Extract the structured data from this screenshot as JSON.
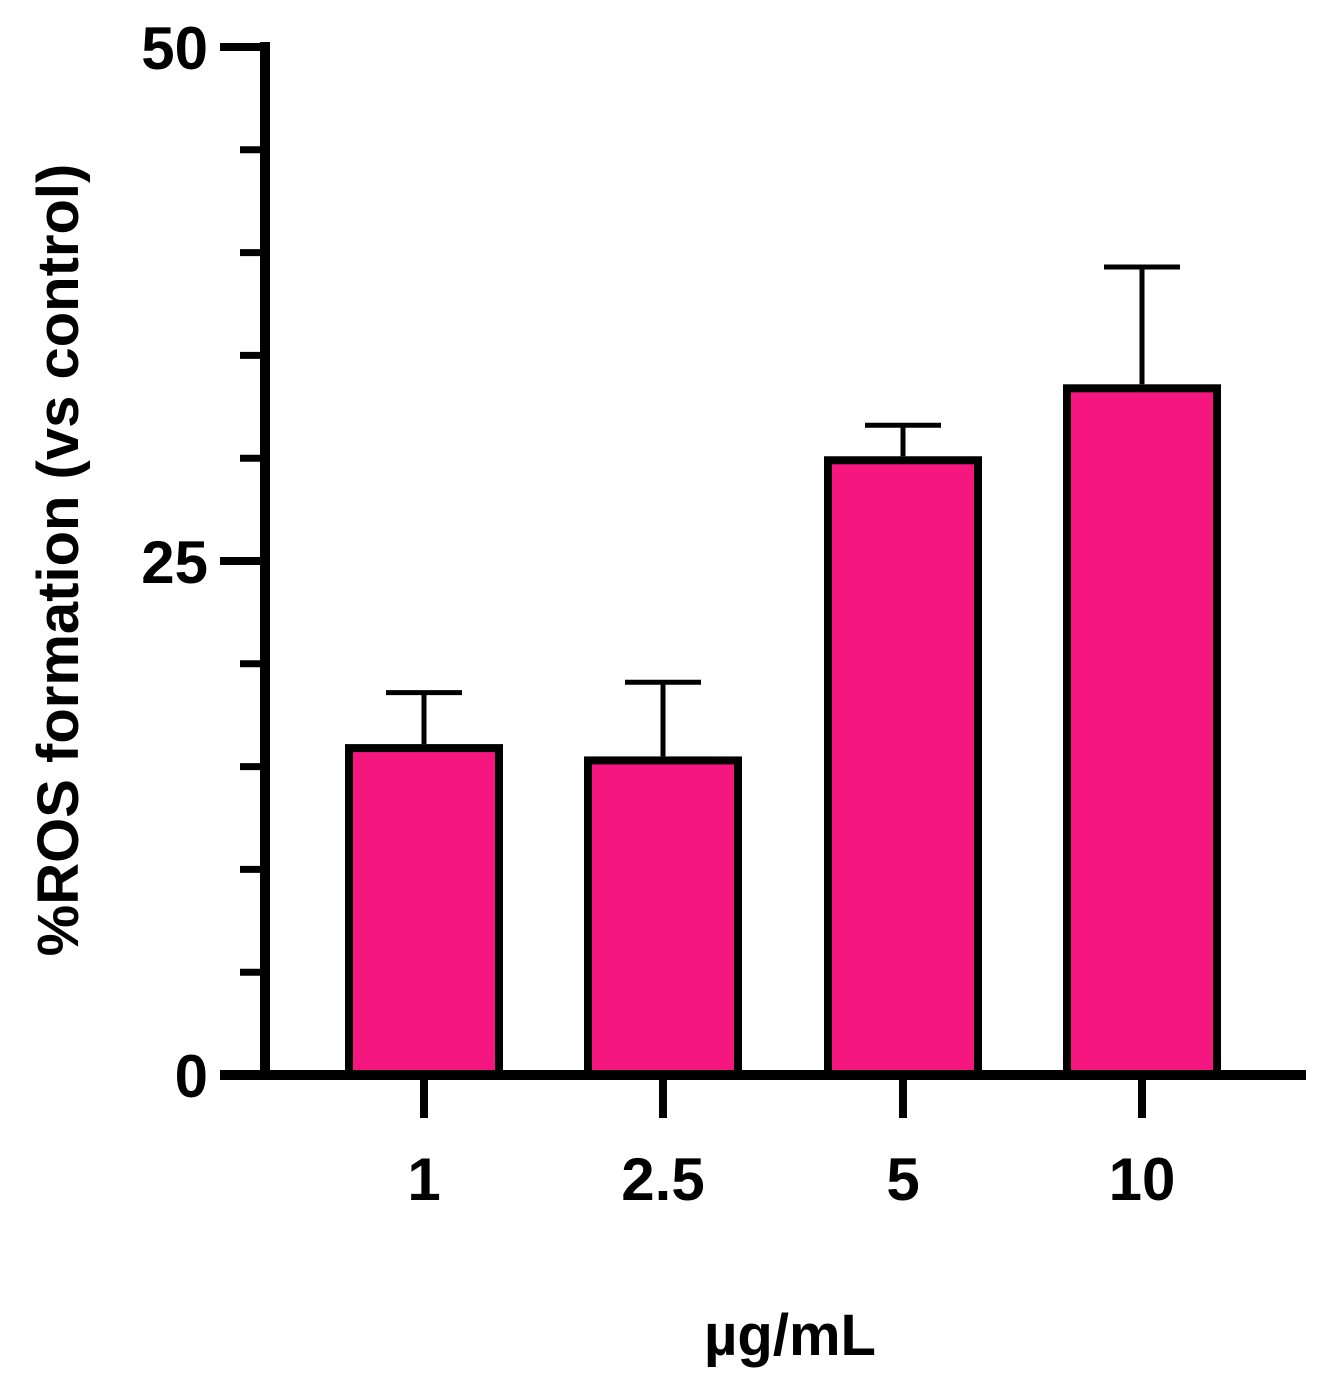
{
  "chart_data": {
    "type": "bar",
    "title": "",
    "xlabel": "µg/mL",
    "ylabel": "%ROS formation (vs control)",
    "categories": [
      "1",
      "2.5",
      "5",
      "10"
    ],
    "values": [
      15.9,
      15.3,
      29.9,
      33.4
    ],
    "error_upper": [
      18.6,
      19.1,
      31.6,
      39.3
    ],
    "ylim": [
      0,
      50
    ],
    "yticks": [
      0,
      25,
      50
    ],
    "y_minor_ticks": [
      5,
      10,
      15,
      20,
      30,
      35,
      40,
      45
    ],
    "grid": false,
    "legend": "none",
    "bar_color": "#f5177f",
    "edge_color": "#000000"
  }
}
